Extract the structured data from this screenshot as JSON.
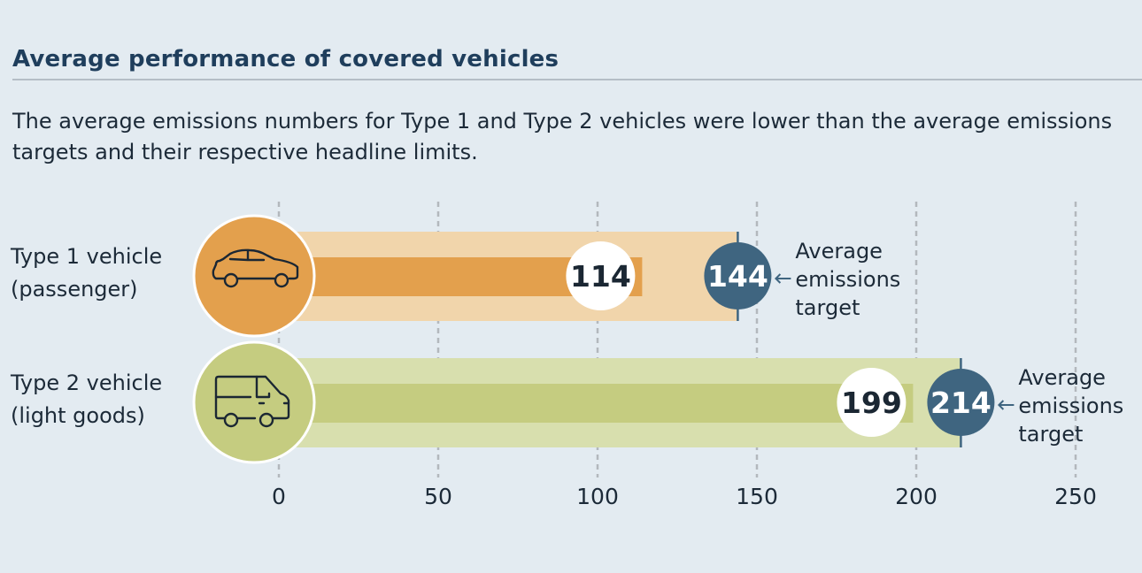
{
  "title": "Average performance of covered vehicles",
  "subtitle": "The average emissions numbers for Type 1 and Type 2 vehicles were lower than the average emissions targets and their respective headline limits.",
  "chart_data": {
    "type": "bar",
    "orientation": "horizontal",
    "categories": [
      {
        "line1": "Type 1 vehicle",
        "line2": "(passenger)",
        "icon": "car-icon",
        "color": "#e3a04d",
        "light_color": "#f1d5ab"
      },
      {
        "line1": "Type 2 vehicle",
        "line2": "(light goods)",
        "icon": "van-icon",
        "color": "#c5cc80",
        "light_color": "#d8dfae"
      }
    ],
    "series": [
      {
        "values": [
          114,
          199
        ]
      },
      {
        "values": [
          144,
          214
        ],
        "label_line1": "Average",
        "label_line2": "emissions",
        "label_line3": "target",
        "color": "#3f6580"
      }
    ],
    "xlim": [
      0,
      250
    ],
    "xticks": [
      "0",
      "50",
      "100",
      "150",
      "200",
      "250"
    ],
    "grid": "vertical dashed"
  }
}
